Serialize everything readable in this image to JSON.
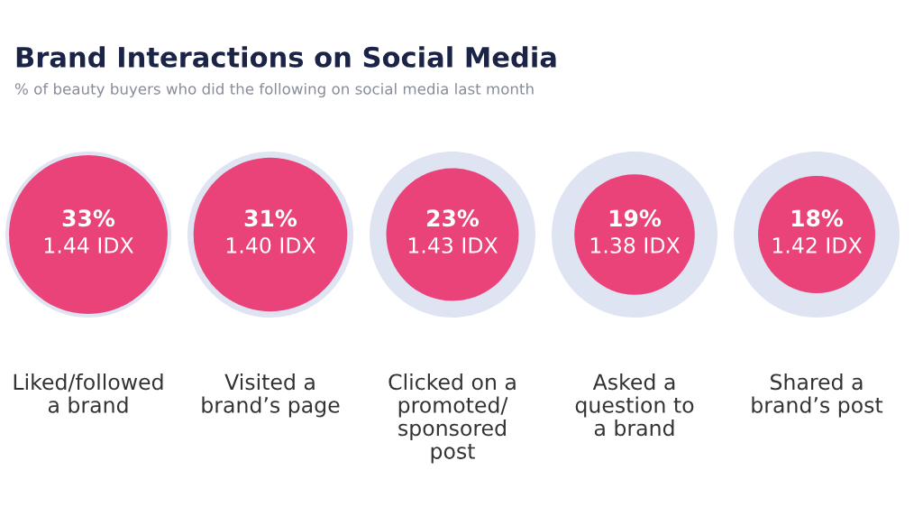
{
  "chart_data": {
    "type": "other",
    "title": "Brand Interactions on Social Media",
    "subtitle": "% of beauty buyers who did the following on social media last month",
    "categories": [
      "Liked/followed\na brand",
      "Visited a\nbrand’s page",
      "Clicked on a\npromoted/\nsponsored\npost",
      "Asked a\nquestion to\na brand",
      "Shared a\nbrand’s post"
    ],
    "series": [
      {
        "color": "#ea4379",
        "values": [
          33,
          31,
          23,
          19,
          18
        ],
        "value_labels": [
          "33%\n1.44 IDX",
          "31%\n1.40 IDX",
          "23%\n1.43 IDX",
          "19%\n1.38 IDX",
          "18%\n1.42 IDX"
        ]
      }
    ]
  }
}
